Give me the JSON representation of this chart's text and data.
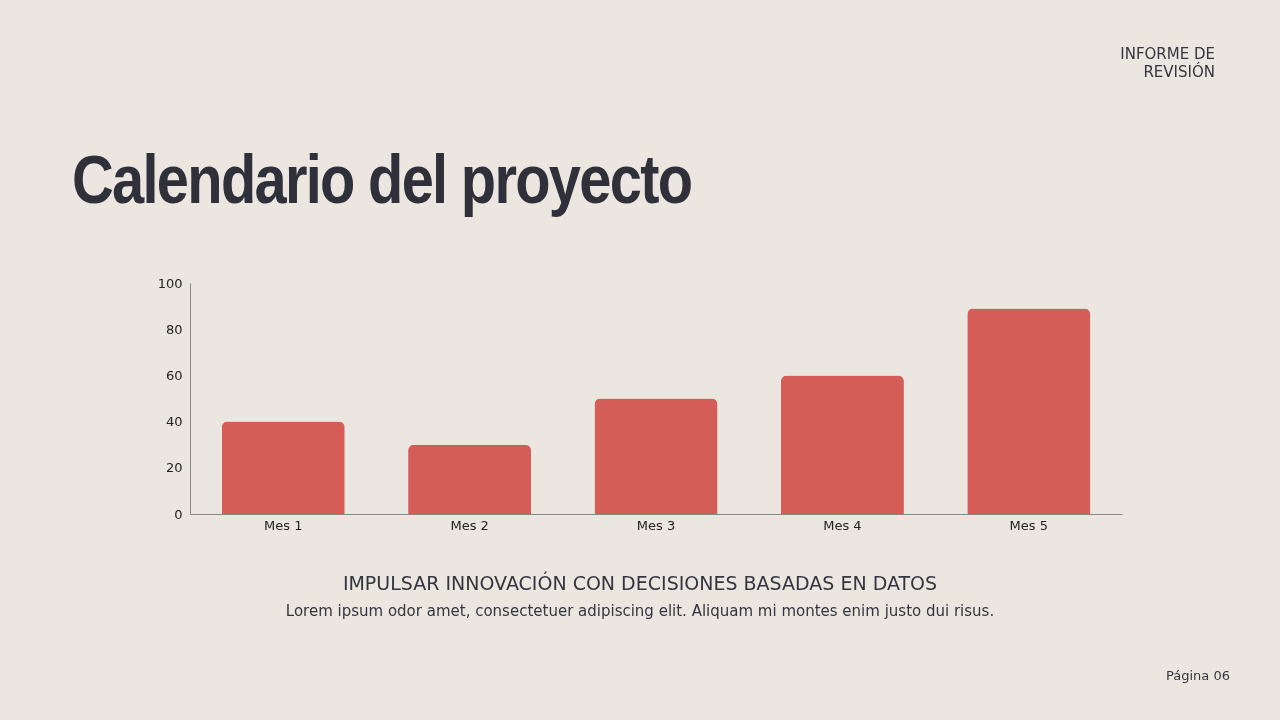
{
  "chart_data": {
    "type": "bar",
    "title": "Calendario del proyecto",
    "categories": [
      "Mes 1",
      "Mes 2",
      "Mes 3",
      "Mes 4",
      "Mes 5"
    ],
    "values": [
      40,
      30,
      50,
      60,
      89
    ],
    "color": "#d45d58",
    "ylim": [
      0,
      100
    ],
    "yticks": [
      0,
      20,
      40,
      60,
      80,
      100
    ],
    "grid": false,
    "annotations": [
      "INFORME DE REVISIÓN",
      "IMPULSAR INNOVACIÓN CON DECISIONES BASADAS EN DATOS",
      "Lorem ipsum odor amet, consectetuer adipiscing elit. Aliquam mi montes enim justo dui risus.",
      "Página 06"
    ]
  }
}
